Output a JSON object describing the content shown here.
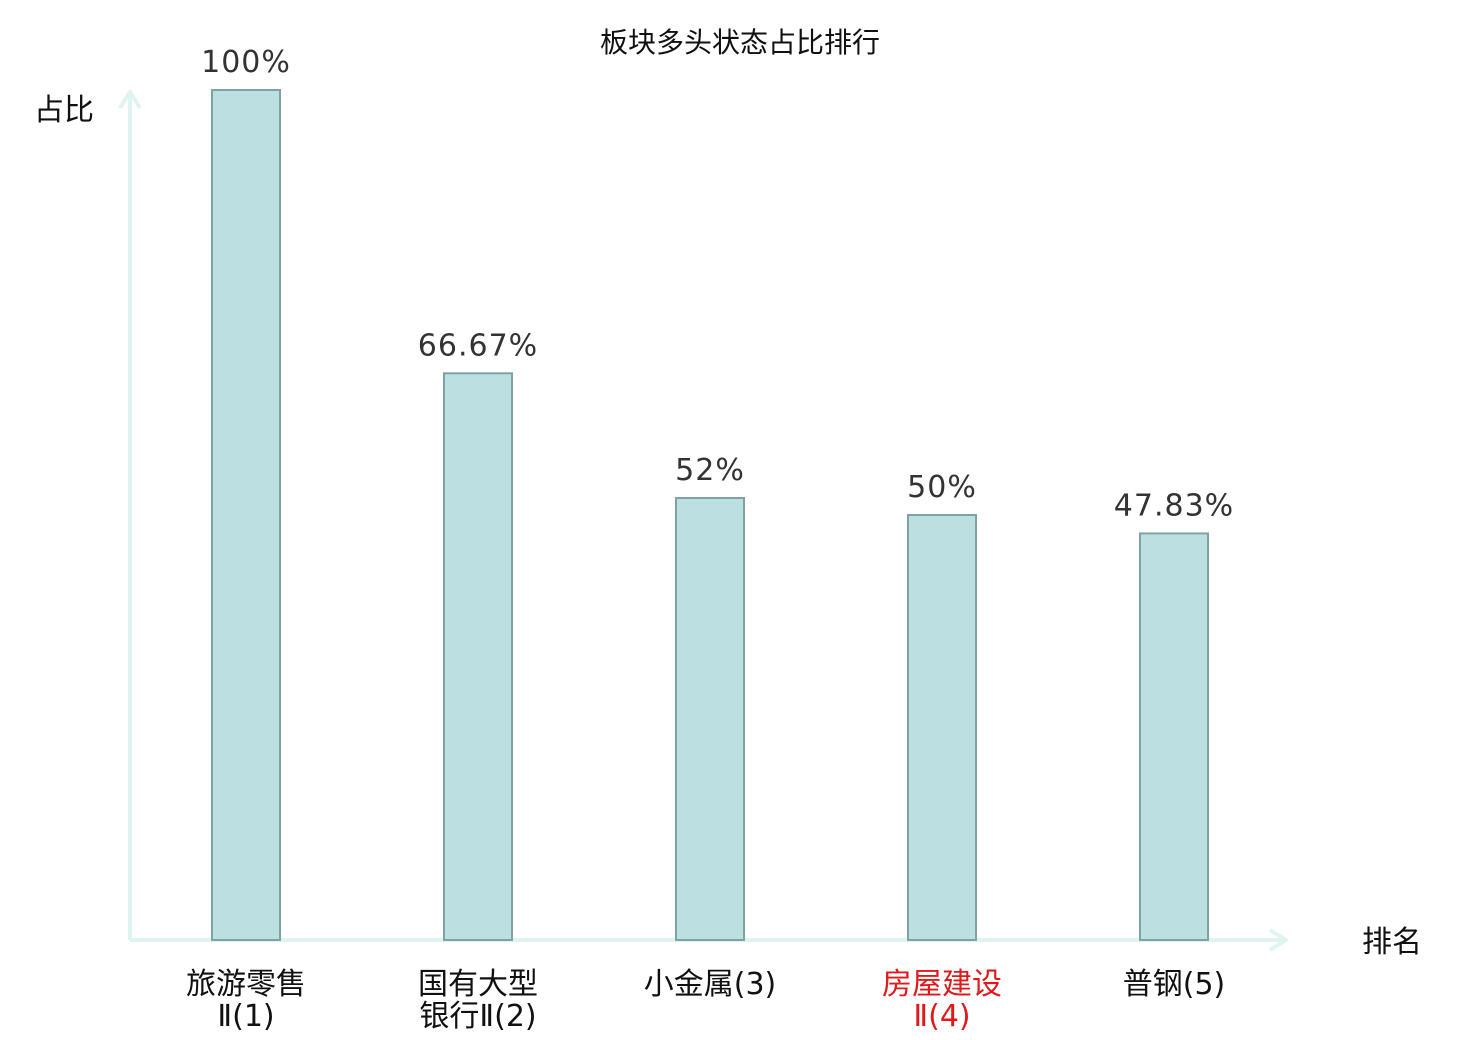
{
  "chart_data": {
    "type": "bar",
    "title": "板块多头状态占比排行",
    "ylabel": "占比",
    "xlabel": "排名",
    "ylim": [
      0,
      100
    ],
    "categories": [
      {
        "line1": "旅游零售",
        "line2": "Ⅱ(1)",
        "highlight": false
      },
      {
        "line1": "国有大型",
        "line2": "银行Ⅱ(2)",
        "highlight": false
      },
      {
        "line1": "小金属(3)",
        "line2": "",
        "highlight": false
      },
      {
        "line1": "房屋建设",
        "line2": "Ⅱ(4)",
        "highlight": true
      },
      {
        "line1": "普钢(5)",
        "line2": "",
        "highlight": false
      }
    ],
    "values": [
      100,
      66.67,
      52,
      50,
      47.83
    ],
    "value_labels": [
      "100%",
      "66.67%",
      "52%",
      "50%",
      "47.83%"
    ],
    "grid": false,
    "legend": "none"
  },
  "colors": {
    "bar_fill": "#bce0e1",
    "bar_stroke": "#7fa3a4",
    "axis": "#dff3f1",
    "label": "#111111",
    "highlight": "#e0191b",
    "value_label": "#333333"
  }
}
